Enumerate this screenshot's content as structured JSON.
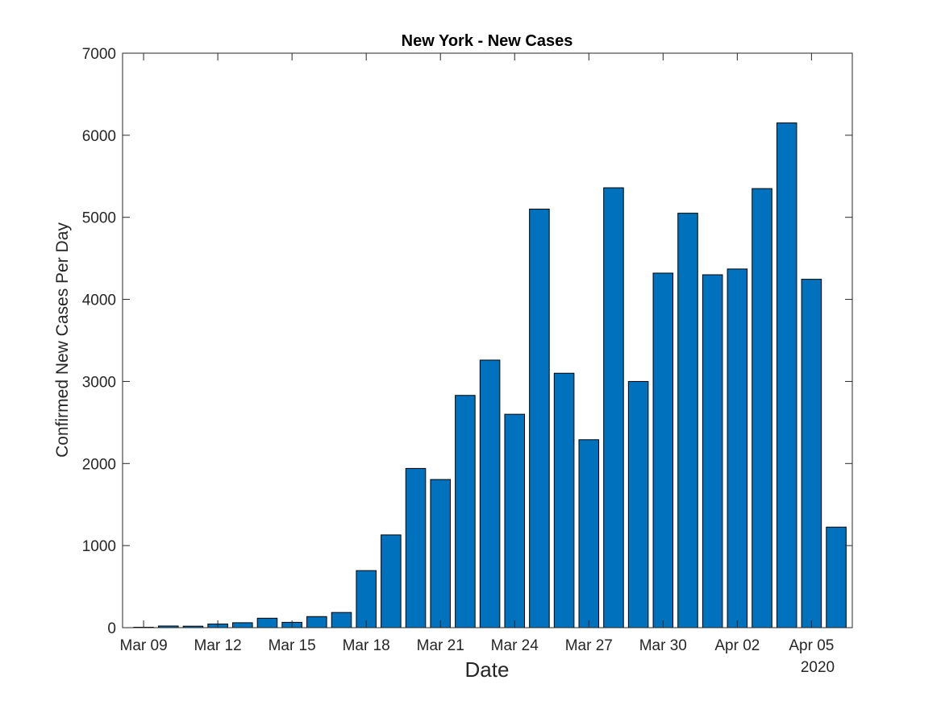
{
  "chart_data": {
    "type": "bar",
    "title": "New York - New Cases",
    "xlabel": "Date",
    "ylabel": "Confirmed New Cases Per Day",
    "x_secondary_label": "2020",
    "categories": [
      "Mar 09",
      "Mar 10",
      "Mar 11",
      "Mar 12",
      "Mar 13",
      "Mar 14",
      "Mar 15",
      "Mar 16",
      "Mar 17",
      "Mar 18",
      "Mar 19",
      "Mar 20",
      "Mar 21",
      "Mar 22",
      "Mar 23",
      "Mar 24",
      "Mar 25",
      "Mar 26",
      "Mar 27",
      "Mar 28",
      "Mar 29",
      "Mar 30",
      "Mar 31",
      "Apr 01",
      "Apr 02",
      "Apr 03",
      "Apr 04",
      "Apr 05",
      "Apr 06"
    ],
    "values": [
      5,
      20,
      18,
      45,
      60,
      115,
      65,
      135,
      185,
      695,
      1130,
      1940,
      1805,
      2830,
      3260,
      2600,
      5100,
      3100,
      2290,
      5360,
      3000,
      4320,
      5050,
      4300,
      4370,
      5350,
      6150,
      4245,
      1225
    ],
    "xticks": [
      "Mar 09",
      "Mar 12",
      "Mar 15",
      "Mar 18",
      "Mar 21",
      "Mar 24",
      "Mar 27",
      "Mar 30",
      "Apr 02",
      "Apr 05"
    ],
    "ylim": [
      0,
      7000
    ],
    "yticks": [
      0,
      1000,
      2000,
      3000,
      4000,
      5000,
      6000,
      7000
    ],
    "grid": false,
    "legend": "none",
    "colors": {
      "bar_fill": "#0072BD",
      "bar_edge": "#000000",
      "axis": "#262626"
    }
  }
}
